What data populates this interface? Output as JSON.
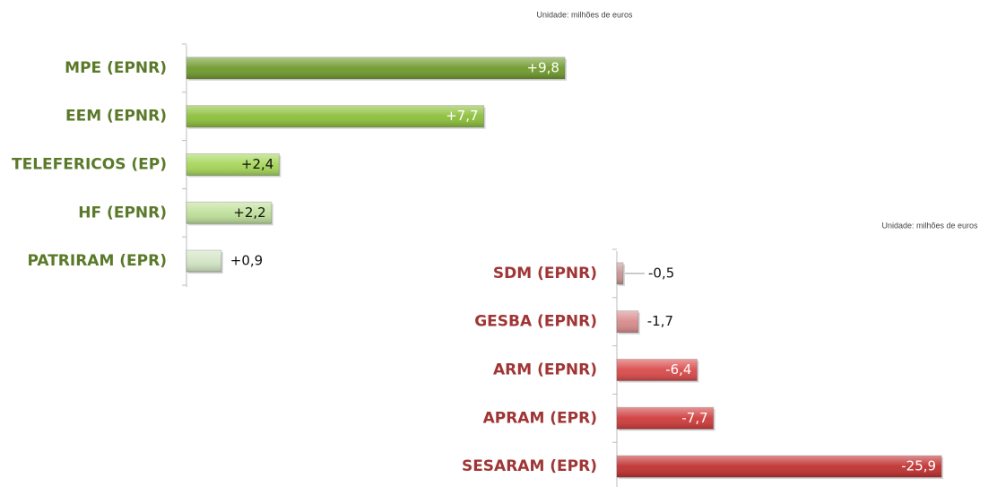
{
  "chart_data": [
    {
      "type": "bar",
      "orientation": "horizontal",
      "subtitle": "Unidade: milhões de euros",
      "categories": [
        "MPE (EPNR)",
        "EEM (EPNR)",
        "TELEFERICOS (EP)",
        "HF (EPNR)",
        "PATRIRAM (EPR)"
      ],
      "values": [
        9.8,
        7.7,
        2.4,
        2.2,
        0.9
      ],
      "value_labels": [
        "+9,8",
        "+7,7",
        "+2,4",
        "+2,2",
        "+0,9"
      ],
      "colors": [
        "#6f9a2c",
        "#8cbf3a",
        "#a6d65a",
        "#bfe09a",
        "#d3e4c4"
      ],
      "label_color": "#5a7a2a",
      "xlim": [
        0,
        10
      ]
    },
    {
      "type": "bar",
      "orientation": "horizontal",
      "subtitle": "Unidade: milhões de euros",
      "categories": [
        "SDM (EPNR)",
        "GESBA (EPNR)",
        "ARM (EPNR)",
        "APRAM (EPR)",
        "SESARAM (EPR)"
      ],
      "values": [
        -0.5,
        -1.7,
        -6.4,
        -7.7,
        -25.9
      ],
      "value_labels": [
        "-0,5",
        "-1,7",
        "-6,4",
        "-7,7",
        "-25,9"
      ],
      "colors": [
        "#c99494",
        "#d98a8a",
        "#d94a4a",
        "#cf3b3b",
        "#c0302f"
      ],
      "label_color": "#a03535",
      "xlim": [
        0,
        -30
      ]
    }
  ]
}
